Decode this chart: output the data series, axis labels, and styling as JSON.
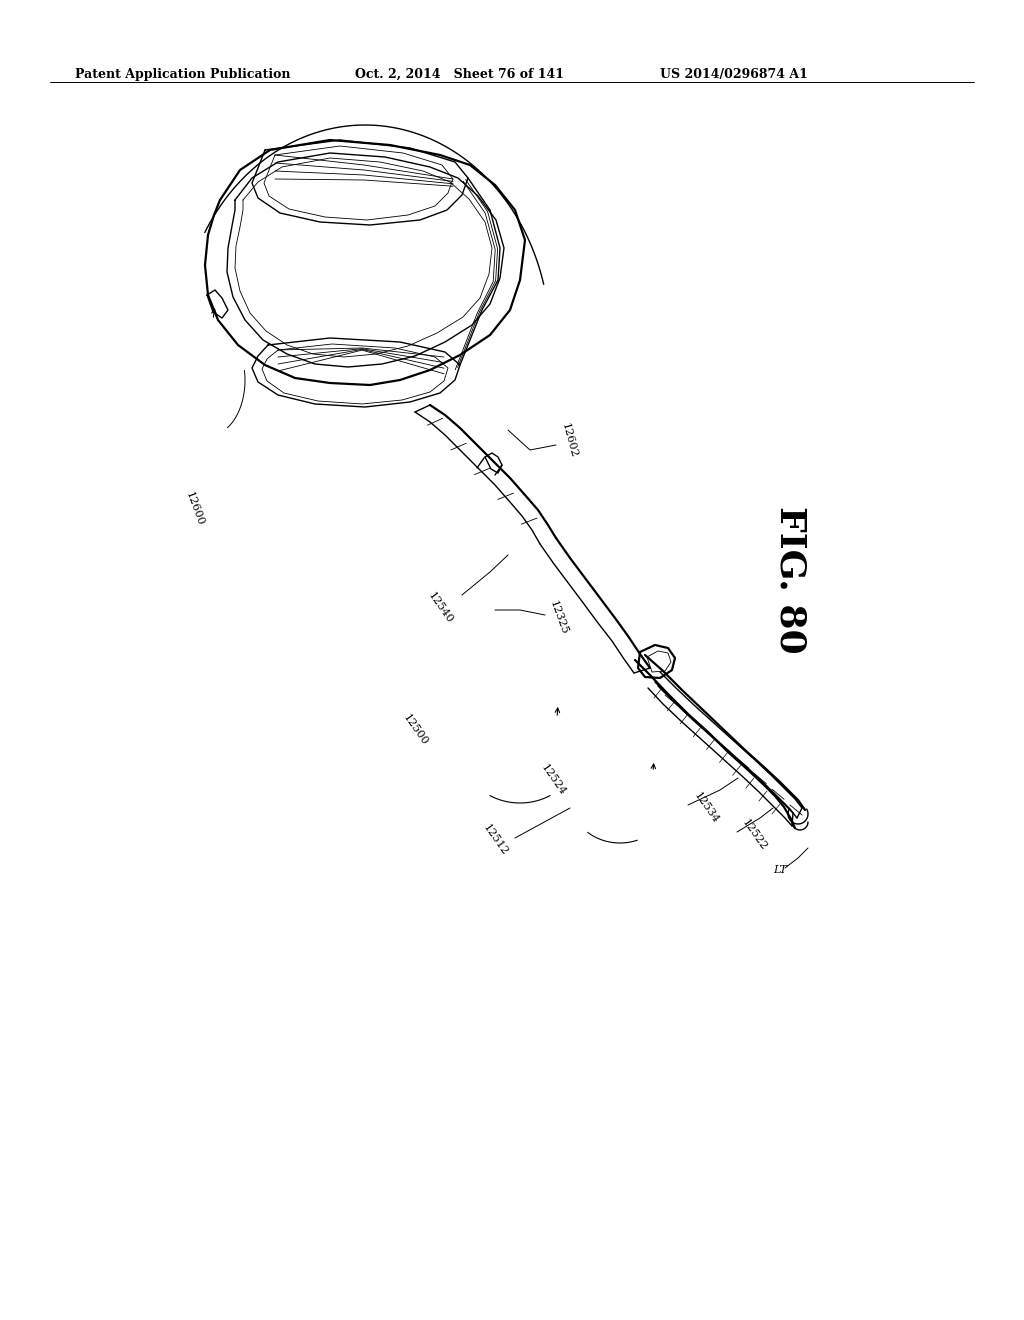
{
  "title_left": "Patent Application Publication",
  "title_mid": "Oct. 2, 2014   Sheet 76 of 141",
  "title_right": "US 2014/0296874 A1",
  "fig_label": "FIG. 80",
  "background_color": "#ffffff",
  "line_color": "#000000",
  "text_color": "#000000",
  "header_fontsize": 9,
  "label_fontsize": 8,
  "fig_label_fontsize": 26,
  "lw_thin": 0.6,
  "lw_med": 1.0,
  "lw_thick": 1.6
}
